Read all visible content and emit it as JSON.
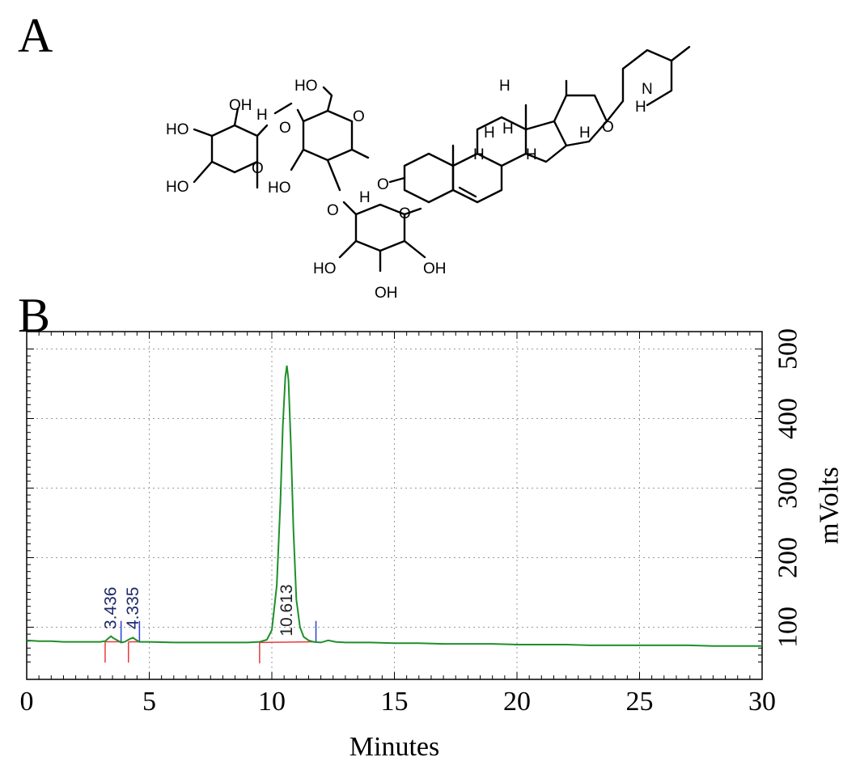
{
  "panels": {
    "a": "A",
    "b": "B"
  },
  "molecule": {
    "atoms": {
      "ho_r1a": "HO",
      "oh_r1a": "OH",
      "h_r1": "H",
      "ho_r1b": "HO",
      "o_r1": "O",
      "ho_glc6": "HO",
      "o_glc": "O",
      "o_link1": "O",
      "ho_glc3": "HO",
      "h_glc": "H",
      "o_link2": "O",
      "o_r2": "O",
      "ho_r2a": "HO",
      "oh_r2a": "OH",
      "oh_r2b": "OH",
      "o_agly": "O",
      "h_s1": "H",
      "h_s2": "H",
      "h_s3": "H",
      "h_s4": "H",
      "h_s5": "H",
      "h_s6": "H",
      "o_furan": "O",
      "nh": "N",
      "nh_h": "H"
    }
  },
  "chart_data": {
    "type": "line",
    "xlabel": "Minutes",
    "ylabel": "mVolts",
    "xlim": [
      0,
      30
    ],
    "ylim": [
      25,
      525
    ],
    "x_ticks": [
      0,
      5,
      10,
      15,
      20,
      25,
      30
    ],
    "y_ticks": [
      100,
      200,
      300,
      400,
      500
    ],
    "grid": true,
    "line_color": "#1f8f2a",
    "series": [
      {
        "x": [
          0,
          0.5,
          1,
          1.5,
          2,
          2.5,
          3,
          3.2,
          3.3,
          3.436,
          3.55,
          3.7,
          3.85,
          4.0,
          4.2,
          4.335,
          4.45,
          4.6,
          5,
          6,
          7,
          8,
          9,
          9.5,
          9.8,
          10.0,
          10.2,
          10.35,
          10.45,
          10.55,
          10.613,
          10.68,
          10.78,
          10.88,
          11.0,
          11.15,
          11.3,
          11.5,
          11.7,
          12.0,
          12.3,
          12.6,
          13,
          14,
          15,
          16,
          17,
          18,
          19,
          20,
          21,
          22,
          23,
          24,
          25,
          26,
          27,
          28,
          29,
          30
        ],
        "y": [
          81,
          80,
          80,
          79,
          79,
          79,
          79,
          80,
          83,
          87,
          84,
          81,
          78,
          79,
          83,
          85,
          82,
          79,
          79,
          78,
          78,
          78,
          78,
          79,
          82,
          96,
          160,
          280,
          390,
          460,
          476,
          455,
          360,
          240,
          140,
          100,
          86,
          81,
          79,
          78,
          81,
          79,
          78,
          78,
          77,
          77,
          76,
          76,
          76,
          75,
          75,
          75,
          74,
          74,
          74,
          74,
          74,
          73,
          73,
          73
        ]
      }
    ],
    "peak_labels": [
      "3.436",
      "4.335",
      "10.613"
    ],
    "peaks": [
      3.436,
      4.335,
      10.613
    ],
    "baseline_color": "#e83a3a",
    "marker_color": "#2a3fd6"
  }
}
